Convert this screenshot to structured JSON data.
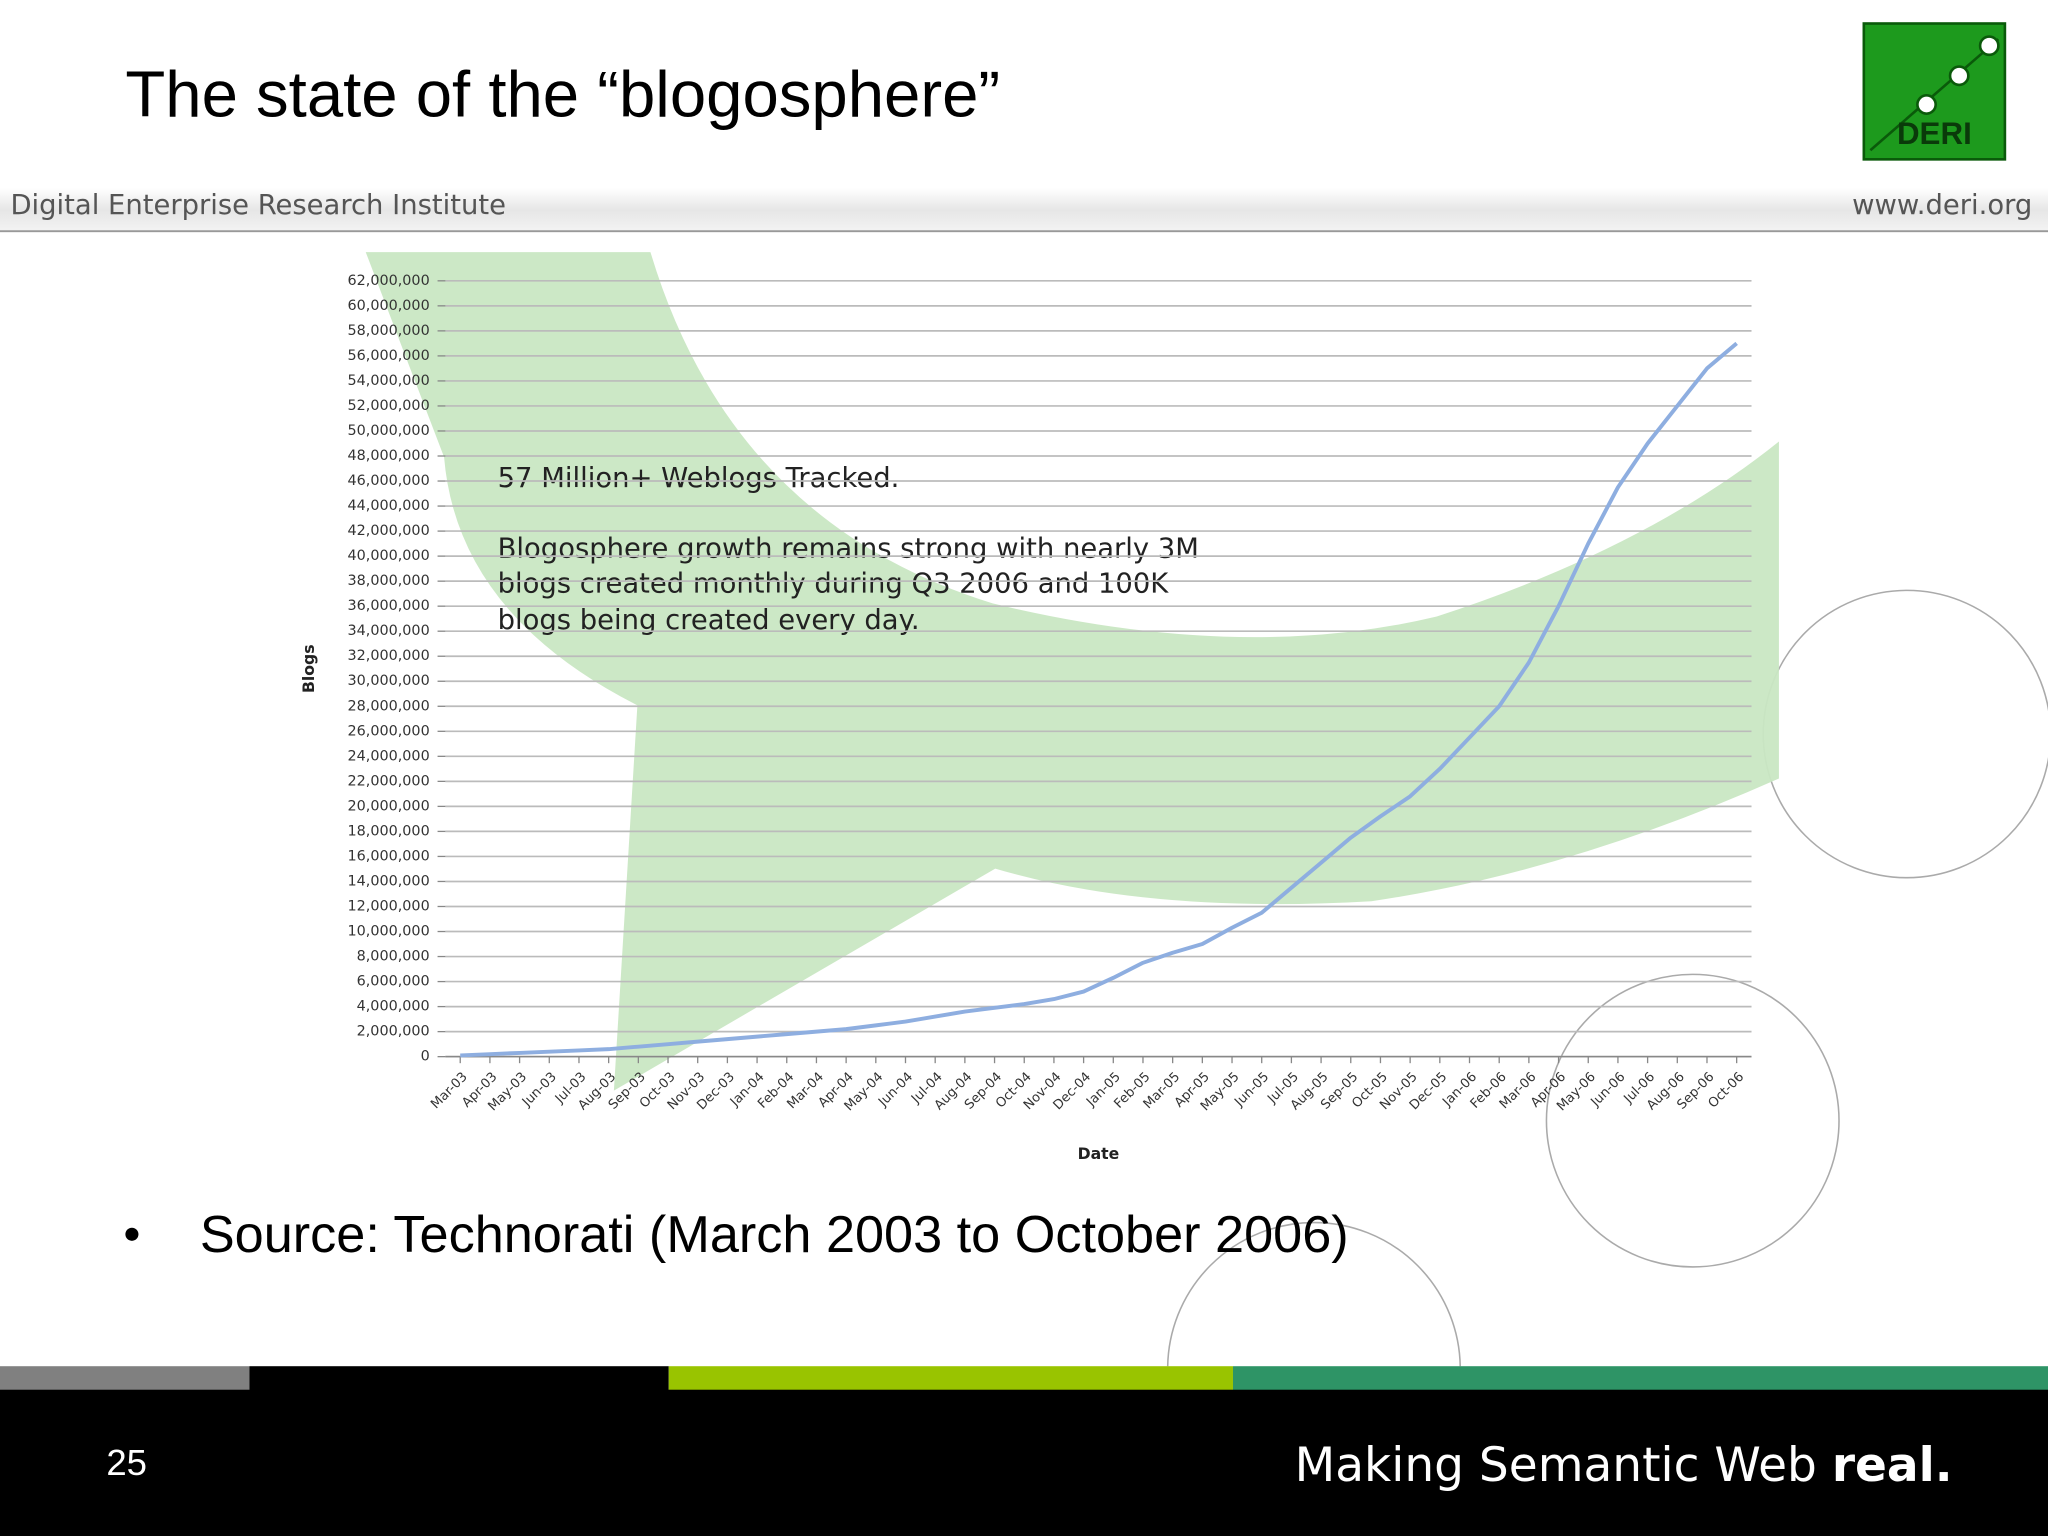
{
  "header": {
    "title": "The state of the “blogosphere”",
    "institute": "Digital Enterprise Research Institute",
    "url": "www.deri.org",
    "logo": "DERI"
  },
  "bullet": "Source: Technorati (March 2003 to October 2006)",
  "footer": {
    "page": "25",
    "tagline": "Making Semantic Web",
    "tagline_bold": "real."
  },
  "chart_data": {
    "type": "line",
    "x_label": "Date",
    "y_label": "Blogs",
    "annotations": [
      "57 Million+ Weblogs Tracked.",
      "Blogosphere growth remains strong with nearly 3M",
      "blogs created monthly during Q3 2006 and 100K",
      "blogs being created every day."
    ],
    "categories": [
      "Mar-03",
      "Apr-03",
      "May-03",
      "Jun-03",
      "Jul-03",
      "Aug-03",
      "Sep-03",
      "Oct-03",
      "Nov-03",
      "Dec-03",
      "Jan-04",
      "Feb-04",
      "Mar-04",
      "Apr-04",
      "May-04",
      "Jun-04",
      "Jul-04",
      "Aug-04",
      "Sep-04",
      "Oct-04",
      "Nov-04",
      "Dec-04",
      "Jan-05",
      "Feb-05",
      "Mar-05",
      "Apr-05",
      "May-05",
      "Jun-05",
      "Jul-05",
      "Aug-05",
      "Sep-05",
      "Oct-05",
      "Nov-05",
      "Dec-05",
      "Jan-06",
      "Feb-06",
      "Mar-06",
      "Apr-06",
      "May-06",
      "Jun-06",
      "Jul-06",
      "Aug-06",
      "Sep-06",
      "Oct-06"
    ],
    "series": [
      {
        "name": "Blogs",
        "color": "#8eaee0",
        "values": [
          100000,
          200000,
          300000,
          400000,
          500000,
          600000,
          800000,
          1000000,
          1200000,
          1400000,
          1600000,
          1800000,
          2000000,
          2200000,
          2500000,
          2800000,
          3200000,
          3600000,
          3900000,
          4200000,
          4600000,
          5200000,
          6300000,
          7500000,
          8300000,
          9000000,
          10300000,
          11500000,
          13500000,
          15500000,
          17500000,
          19200000,
          20800000,
          23000000,
          25500000,
          28000000,
          31500000,
          36000000,
          41000000,
          45500000,
          49000000,
          52000000,
          55000000,
          57000000
        ]
      }
    ],
    "ylim": [
      0,
      62000000
    ],
    "yticks": [
      0,
      {
        "value": 2000000,
        "label": "2,000,000"
      },
      {
        "value": 4000000,
        "label": "4,000,000"
      },
      {
        "value": 6000000,
        "label": "6,000,000"
      },
      {
        "value": 8000000,
        "label": "8,000,000"
      },
      {
        "value": 10000000,
        "label": "10,000,000"
      },
      {
        "value": 12000000,
        "label": "12,000,000"
      },
      {
        "value": 14000000,
        "label": "14,000,000"
      },
      {
        "value": 16000000,
        "label": "16,000,000"
      },
      {
        "value": 18000000,
        "label": "18,000,000"
      },
      {
        "value": 20000000,
        "label": "20,000,000"
      },
      {
        "value": 22000000,
        "label": "22,000,000"
      },
      {
        "value": 24000000,
        "label": "24,000,000"
      },
      {
        "value": 26000000,
        "label": "26,000,000"
      },
      {
        "value": 28000000,
        "label": "28,000,000"
      },
      {
        "value": 30000000,
        "label": "30,000,000"
      },
      {
        "value": 32000000,
        "label": "32,000,000"
      },
      {
        "value": 34000000,
        "label": "34,000,000"
      },
      {
        "value": 36000000,
        "label": "36,000,000"
      },
      {
        "value": 38000000,
        "label": "38,000,000"
      },
      {
        "value": 40000000,
        "label": "40,000,000"
      },
      {
        "value": 42000000,
        "label": "42,000,000"
      },
      {
        "value": 44000000,
        "label": "44,000,000"
      },
      {
        "value": 46000000,
        "label": "46,000,000"
      },
      {
        "value": 48000000,
        "label": "48,000,000"
      },
      {
        "value": 50000000,
        "label": "50,000,000"
      },
      {
        "value": 52000000,
        "label": "52,000,000"
      },
      {
        "value": 54000000,
        "label": "54,000,000"
      },
      {
        "value": 56000000,
        "label": "56,000,000"
      },
      {
        "value": 58000000,
        "label": "58,000,000"
      },
      {
        "value": 60000000,
        "label": "60,000,000"
      },
      {
        "value": 62000000,
        "label": "62,000,000"
      }
    ],
    "grid": true
  }
}
